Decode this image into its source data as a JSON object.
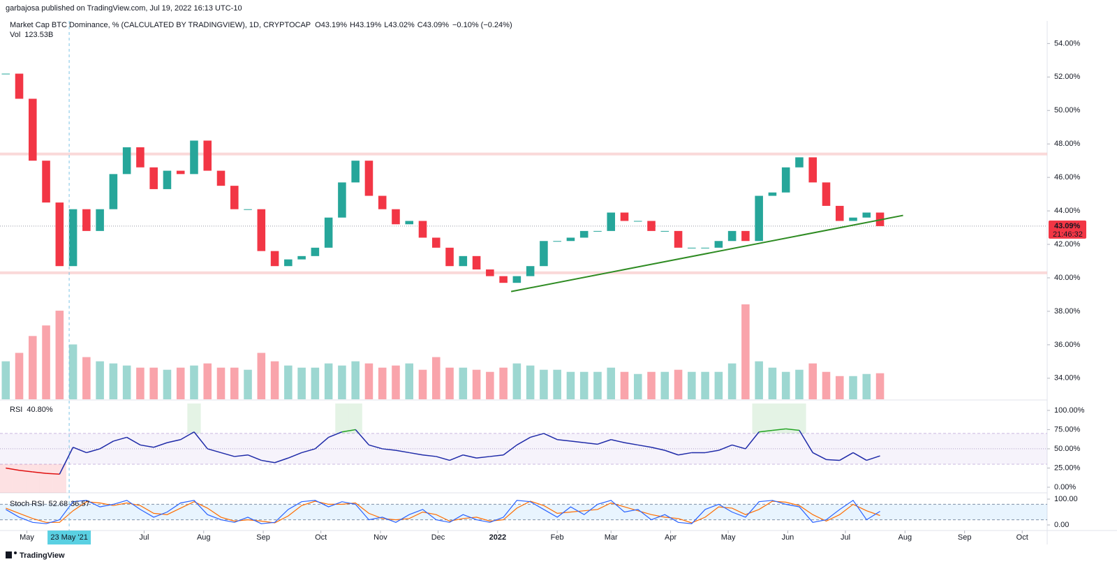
{
  "chart_data": {
    "type": "candlestick",
    "published": "garbajosa published on TradingView.com, Jul 19, 2022 16:13 UTC-10",
    "title": "Market Cap BTC Dominance, % (CALCULATED BY TRADINGVIEW), 1D, CRYPTOCAP",
    "ohlc_keys": [
      "O",
      "H",
      "L",
      "C"
    ],
    "ohlc_values": [
      "43.19%",
      "43.19%",
      "43.02%",
      "43.09%"
    ],
    "change": "−0.10% (−0.24%)",
    "up_color": "#26a69a",
    "down_color": "#f23645",
    "xlim": [
      "2021-04-17",
      "2022-10-14"
    ],
    "xticks": [
      {
        "value": "2021-05-01",
        "label": "May"
      },
      {
        "value": "2021-07-01",
        "label": "Jul"
      },
      {
        "value": "2021-08-01",
        "label": "Aug"
      },
      {
        "value": "2021-09-01",
        "label": "Sep"
      },
      {
        "value": "2021-10-01",
        "label": "Oct"
      },
      {
        "value": "2021-11-01",
        "label": "Nov"
      },
      {
        "value": "2021-12-01",
        "label": "Dec"
      },
      {
        "value": "2022-01-01",
        "label": "2022"
      },
      {
        "value": "2022-02-01",
        "label": "Feb"
      },
      {
        "value": "2022-03-01",
        "label": "Mar"
      },
      {
        "value": "2022-04-01",
        "label": "Apr"
      },
      {
        "value": "2022-05-01",
        "label": "May"
      },
      {
        "value": "2022-06-01",
        "label": "Jun"
      },
      {
        "value": "2022-07-01",
        "label": "Jul"
      },
      {
        "value": "2022-08-01",
        "label": "Aug"
      },
      {
        "value": "2022-09-01",
        "label": "Sep"
      },
      {
        "value": "2022-10-01",
        "label": "Oct"
      }
    ],
    "ylim": [
      32.7,
      55.35
    ],
    "yticks": [
      {
        "value": 34,
        "label": "34.00%"
      },
      {
        "value": 36,
        "label": "36.00%"
      },
      {
        "value": 38,
        "label": "38.00%"
      },
      {
        "value": 40,
        "label": "40.00%"
      },
      {
        "value": 42,
        "label": "42.00%"
      },
      {
        "value": 44,
        "label": "44.00%"
      },
      {
        "value": 46,
        "label": "46.00%"
      },
      {
        "value": 48,
        "label": "48.00%"
      },
      {
        "value": 50,
        "label": "50.00%"
      },
      {
        "value": 52,
        "label": "52.00%"
      },
      {
        "value": 54,
        "label": "54.00%"
      }
    ],
    "x": [
      "2021-04-20",
      "2021-04-27",
      "2021-05-04",
      "2021-05-11",
      "2021-05-18",
      "2021-05-25",
      "2021-06-01",
      "2021-06-08",
      "2021-06-15",
      "2021-06-22",
      "2021-06-29",
      "2021-07-06",
      "2021-07-13",
      "2021-07-20",
      "2021-07-27",
      "2021-08-03",
      "2021-08-10",
      "2021-08-17",
      "2021-08-24",
      "2021-08-31",
      "2021-09-07",
      "2021-09-14",
      "2021-09-21",
      "2021-09-28",
      "2021-10-05",
      "2021-10-12",
      "2021-10-19",
      "2021-10-26",
      "2021-11-02",
      "2021-11-09",
      "2021-11-16",
      "2021-11-23",
      "2021-11-30",
      "2021-12-07",
      "2021-12-14",
      "2021-12-21",
      "2021-12-28",
      "2022-01-04",
      "2022-01-11",
      "2022-01-18",
      "2022-01-25",
      "2022-02-01",
      "2022-02-08",
      "2022-02-15",
      "2022-02-22",
      "2022-03-01",
      "2022-03-08",
      "2022-03-15",
      "2022-03-22",
      "2022-03-29",
      "2022-04-05",
      "2022-04-12",
      "2022-04-19",
      "2022-04-26",
      "2022-05-03",
      "2022-05-10",
      "2022-05-17",
      "2022-05-24",
      "2022-05-31",
      "2022-06-07",
      "2022-06-14",
      "2022-06-21",
      "2022-06-28",
      "2022-07-05",
      "2022-07-12",
      "2022-07-19"
    ],
    "values": [
      52.2,
      50.7,
      47.0,
      44.5,
      40.7,
      44.1,
      42.8,
      44.1,
      46.2,
      47.8,
      46.6,
      45.3,
      46.4,
      46.2,
      48.2,
      46.4,
      45.5,
      44.1,
      44.1,
      41.6,
      40.7,
      41.1,
      41.3,
      41.8,
      43.6,
      45.7,
      47.0,
      44.9,
      44.1,
      43.2,
      43.4,
      42.4,
      41.8,
      40.7,
      41.3,
      40.5,
      40.1,
      39.7,
      40.1,
      40.7,
      42.2,
      42.2,
      42.4,
      42.8,
      42.8,
      43.9,
      43.4,
      43.4,
      42.8,
      42.8,
      41.8,
      41.8,
      41.8,
      42.2,
      42.8,
      42.2,
      44.9,
      45.1,
      46.6,
      47.2,
      45.7,
      44.3,
      43.4,
      43.6,
      43.9,
      43.09
    ],
    "last_price": {
      "value": 43.09,
      "label": "43.09%"
    },
    "countdown": "21:46:32",
    "levels": [
      47.4,
      40.3
    ],
    "level_color": "#f8c9c9",
    "trendline": {
      "x": [
        "2022-01-08",
        "2022-07-31"
      ],
      "y": [
        39.18,
        43.73
      ],
      "color": "#2e8b22"
    },
    "crosshair": {
      "x": "2021-05-23",
      "label": "23 May '21"
    },
    "volume": {
      "label": "Vol",
      "last": "123.53B",
      "ylim": [
        0,
        900
      ],
      "values": [
        180,
        220,
        300,
        350,
        420,
        260,
        200,
        180,
        170,
        160,
        150,
        150,
        140,
        150,
        160,
        170,
        150,
        150,
        140,
        220,
        180,
        160,
        150,
        150,
        170,
        160,
        180,
        170,
        150,
        160,
        170,
        140,
        200,
        150,
        150,
        140,
        130,
        150,
        170,
        160,
        140,
        140,
        130,
        130,
        130,
        150,
        130,
        120,
        130,
        130,
        140,
        130,
        130,
        130,
        170,
        450,
        180,
        150,
        130,
        140,
        170,
        130,
        110,
        110,
        120,
        123.53
      ]
    },
    "rsi": {
      "label": "RSI",
      "last": "40.80%",
      "color": "#1e2aa8",
      "ylim": [
        -7.3,
        109
      ],
      "yticks": [
        {
          "value": 0,
          "label": "0.00%"
        },
        {
          "value": 25,
          "label": "25.00%"
        },
        {
          "value": 50,
          "label": "50.00%"
        },
        {
          "value": 75,
          "label": "75.00%"
        },
        {
          "value": 100,
          "label": "100.00%"
        }
      ],
      "band": [
        30,
        70
      ],
      "midline": 50,
      "values": [
        25,
        22,
        20,
        18,
        17,
        52,
        45,
        50,
        60,
        65,
        55,
        52,
        58,
        62,
        72,
        50,
        45,
        40,
        42,
        35,
        32,
        38,
        45,
        50,
        65,
        72,
        75,
        55,
        50,
        48,
        45,
        42,
        40,
        35,
        42,
        38,
        40,
        42,
        55,
        65,
        70,
        62,
        60,
        58,
        56,
        62,
        58,
        55,
        52,
        48,
        42,
        45,
        45,
        48,
        55,
        50,
        72,
        74,
        76,
        74,
        45,
        36,
        35,
        45,
        35,
        40.8
      ]
    },
    "stoch_rsi": {
      "label": "Stoch RSI",
      "k_last": "52.68",
      "d_last": "36.57",
      "k_color": "#2962ff",
      "d_color": "#ff6d00",
      "ylim": [
        -21.6,
        113.5
      ],
      "yticks": [
        {
          "value": 0,
          "label": "0.00"
        },
        {
          "value": 100,
          "label": "100.00"
        }
      ],
      "band": [
        20,
        80
      ],
      "k": [
        60,
        30,
        10,
        5,
        20,
        90,
        95,
        70,
        80,
        95,
        60,
        30,
        50,
        85,
        95,
        40,
        20,
        10,
        30,
        5,
        10,
        60,
        90,
        95,
        70,
        90,
        80,
        20,
        30,
        10,
        40,
        60,
        20,
        10,
        40,
        20,
        10,
        30,
        95,
        90,
        60,
        30,
        70,
        40,
        80,
        95,
        50,
        60,
        20,
        40,
        10,
        5,
        60,
        80,
        50,
        30,
        90,
        95,
        80,
        70,
        10,
        20,
        60,
        95,
        20,
        52.68
      ],
      "d": [
        65,
        45,
        25,
        10,
        10,
        55,
        90,
        85,
        75,
        85,
        75,
        45,
        40,
        65,
        90,
        65,
        30,
        15,
        20,
        15,
        8,
        35,
        75,
        92,
        80,
        80,
        85,
        45,
        25,
        20,
        25,
        50,
        40,
        15,
        25,
        30,
        15,
        20,
        65,
        92,
        75,
        45,
        50,
        55,
        60,
        85,
        70,
        55,
        40,
        30,
        25,
        8,
        30,
        70,
        65,
        40,
        60,
        92,
        88,
        75,
        40,
        15,
        40,
        80,
        55,
        36.57
      ]
    },
    "footer": "TradingView"
  }
}
